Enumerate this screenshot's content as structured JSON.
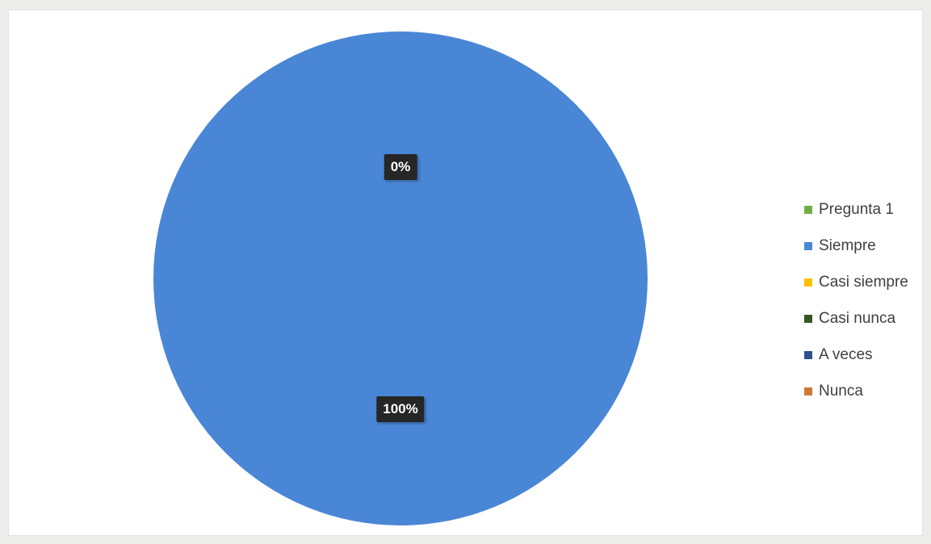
{
  "chart_data": {
    "type": "pie",
    "title": "",
    "categories": [
      "Pregunta 1",
      "Siempre",
      "Casi siempre",
      "Casi nunca",
      "A veces",
      "Nunca"
    ],
    "values": [
      0,
      100,
      0,
      0,
      0,
      0
    ],
    "data_labels": [
      {
        "category": "Pregunta 1",
        "text": "0%"
      },
      {
        "category": "Siempre",
        "text": "100%"
      }
    ],
    "colors": [
      "#70ad47",
      "#4a86d6",
      "#ffc000",
      "#375623",
      "#2f4f8f",
      "#c97b3a"
    ],
    "legend_position": "right"
  }
}
